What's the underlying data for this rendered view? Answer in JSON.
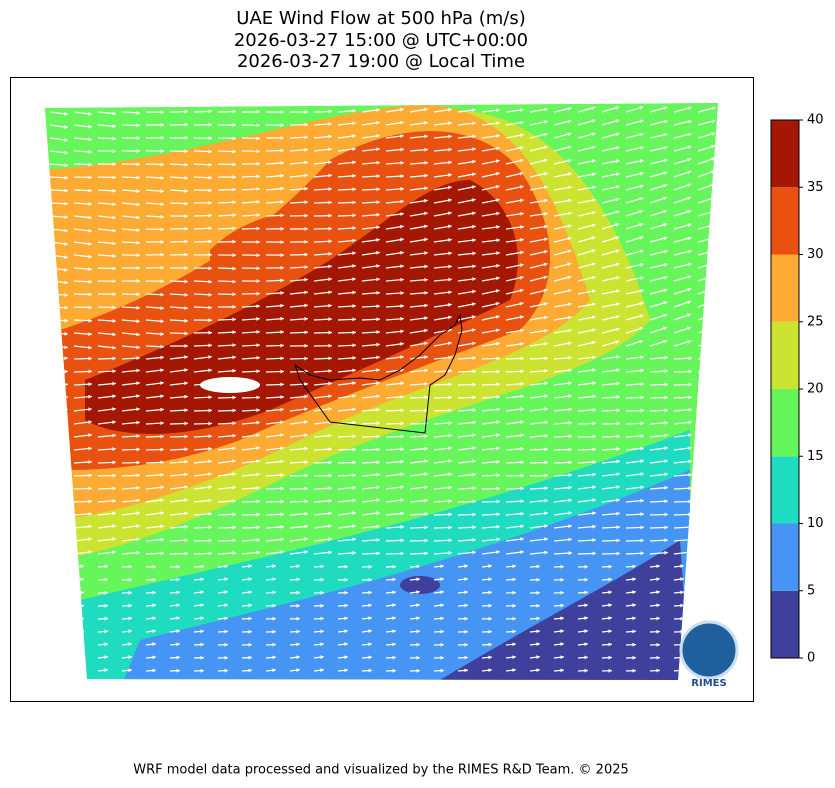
{
  "title": [
    "UAE Wind Flow at 500 hPa (m/s)",
    "2026-03-27 15:00 @ UTC+00:00",
    "2026-03-27 19:00 @ Local Time"
  ],
  "colorbar": {
    "bounds": [
      0,
      5,
      10,
      15,
      20,
      25,
      30,
      35,
      40
    ],
    "colors": [
      "#3f3f9c",
      "#4695f5",
      "#1fdbc0",
      "#66f55a",
      "#cde332",
      "#fdab32",
      "#e8510f",
      "#a41703"
    ],
    "ticks": [
      0,
      5,
      10,
      15,
      20,
      25,
      30,
      35,
      40
    ]
  },
  "logo": {
    "text": "RIMES"
  },
  "footer": "WRF model data processed and visualized by the RIMES R&D Team. © 2025"
}
